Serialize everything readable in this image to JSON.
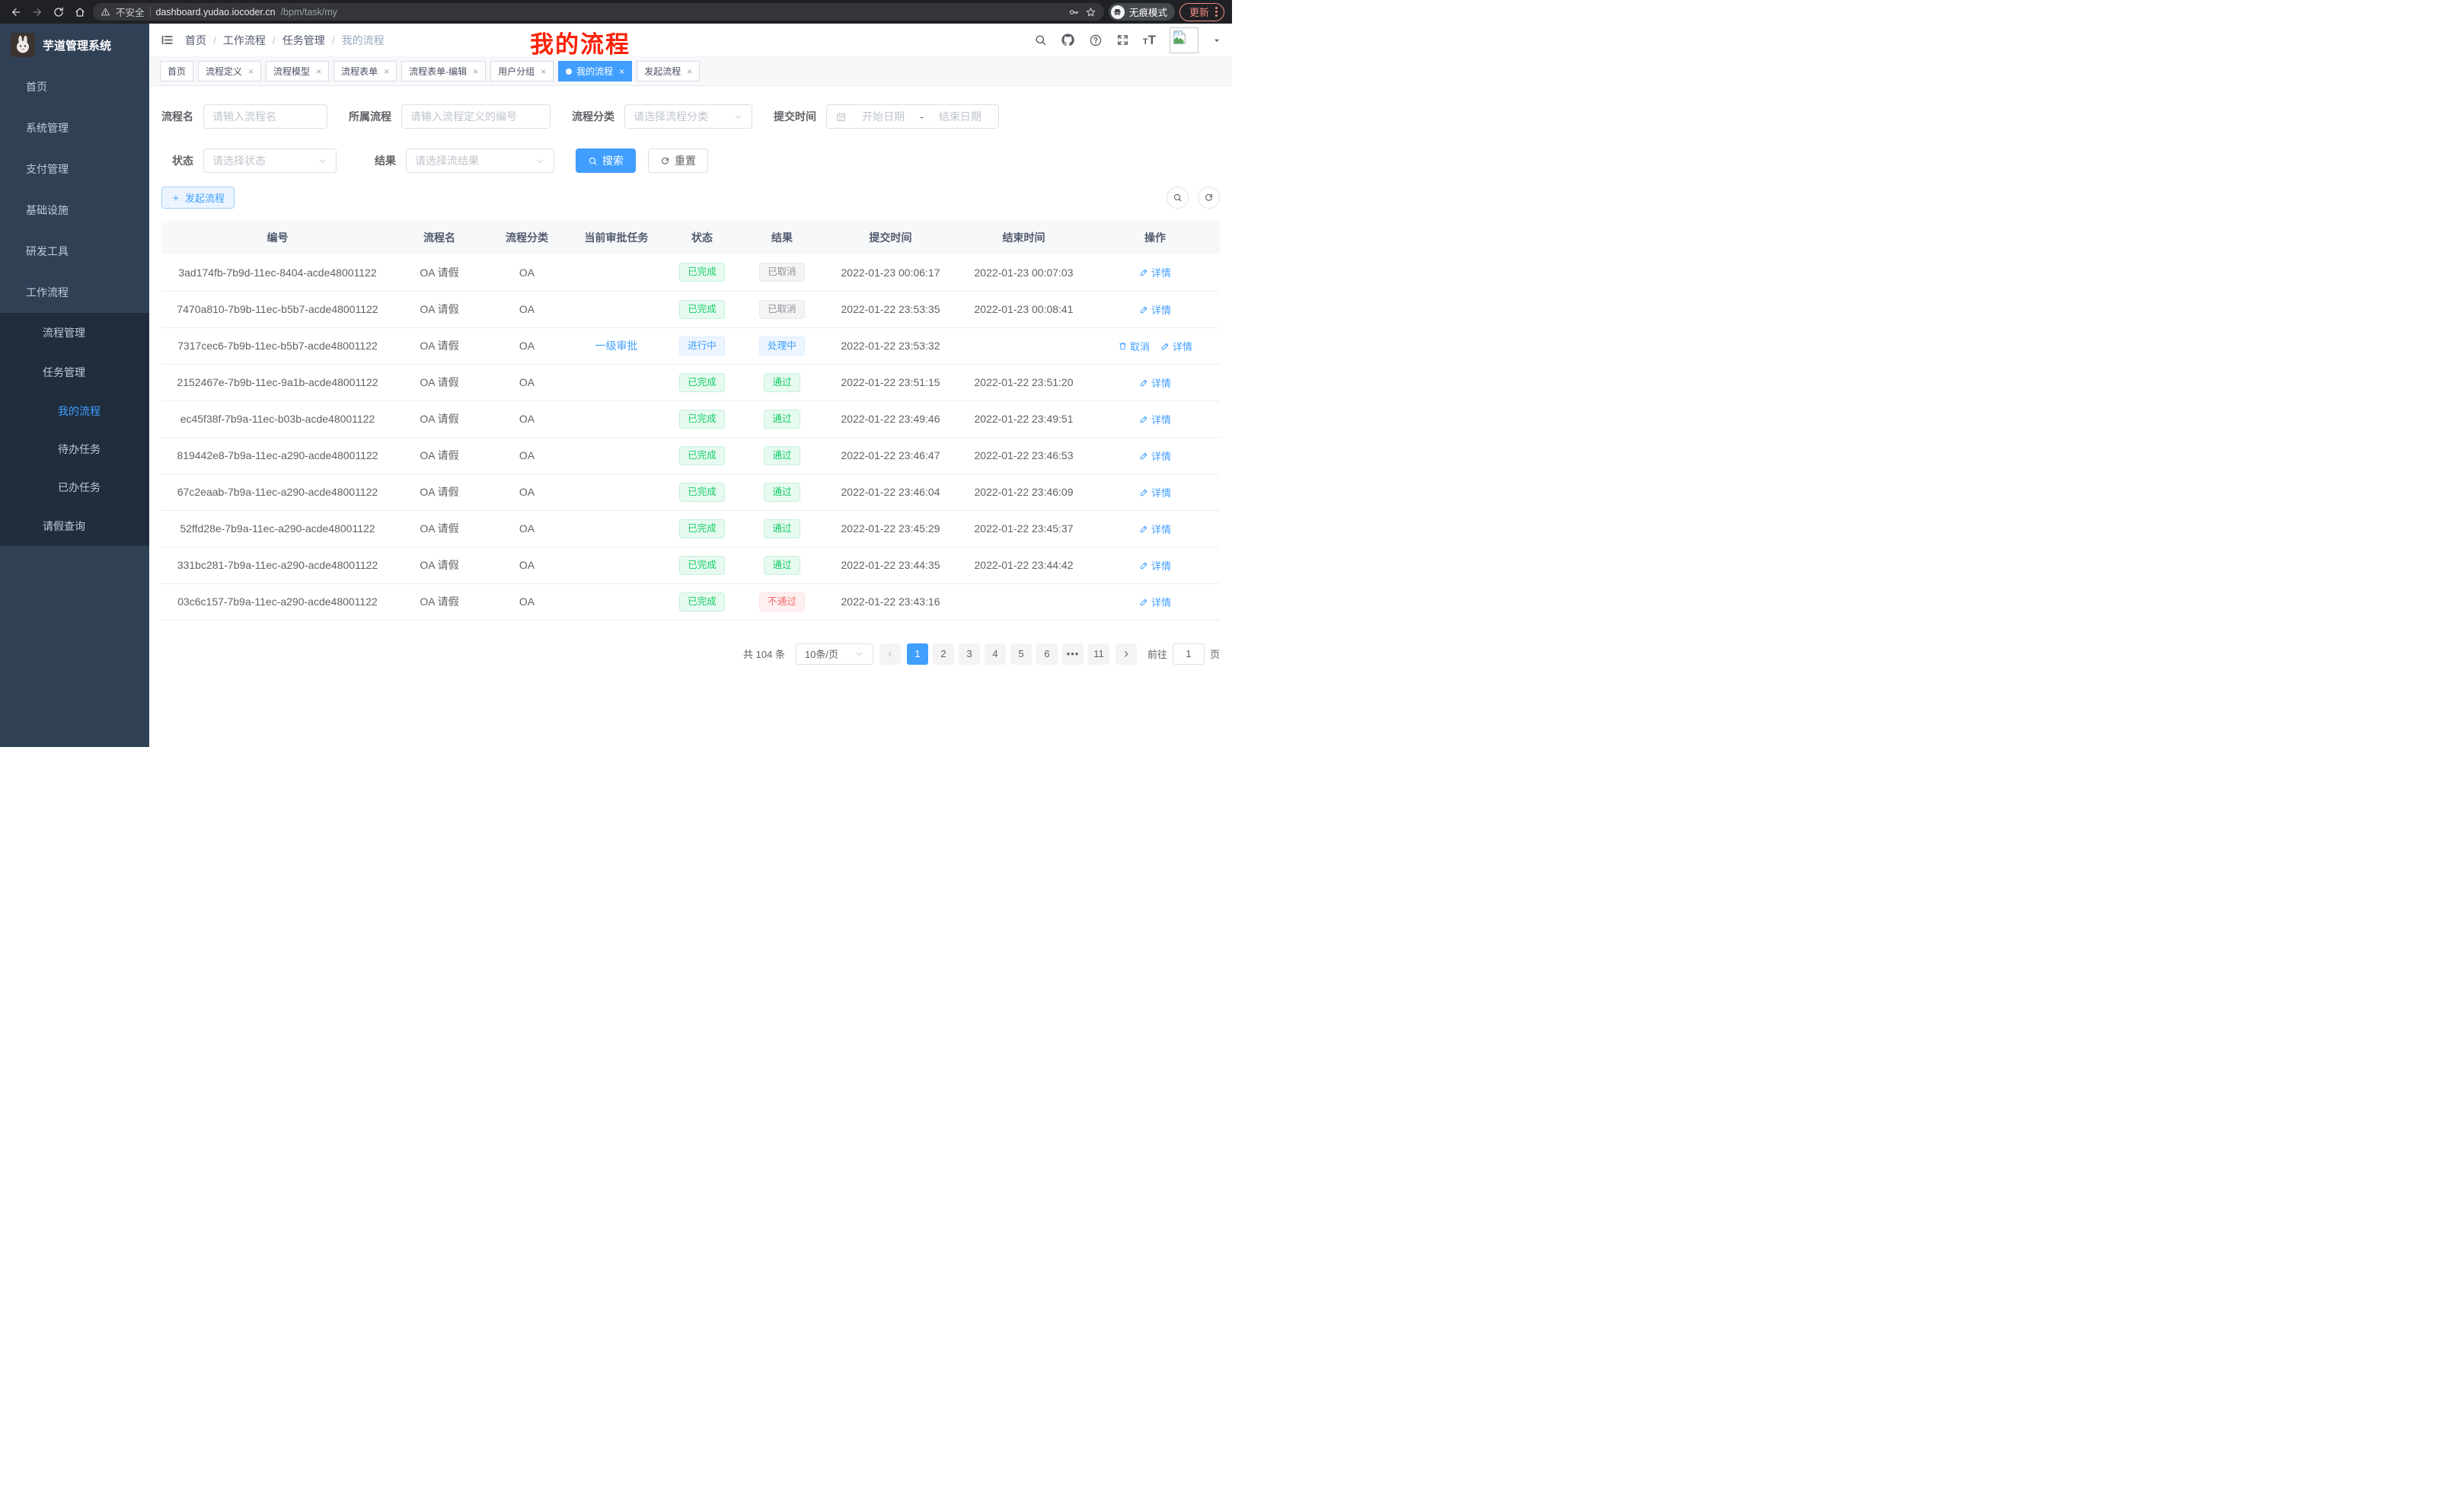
{
  "browser": {
    "security_label": "不安全",
    "url_host": "dashboard.yudao.iocoder.cn",
    "url_path": "/bpm/task/my",
    "incognito_label": "无痕模式",
    "update_button_label": "更新"
  },
  "sidebar": {
    "logo_title": "芋道管理系统",
    "items": [
      {
        "label": "首页",
        "icon": "dashboard",
        "level": 0,
        "chevron": "",
        "in_sub": false,
        "active": false
      },
      {
        "label": "系统管理",
        "icon": "gear",
        "level": 0,
        "chevron": "down",
        "in_sub": false,
        "active": false
      },
      {
        "label": "支付管理",
        "icon": "yen",
        "level": 0,
        "chevron": "down",
        "in_sub": false,
        "active": false
      },
      {
        "label": "基础设施",
        "icon": "monitor",
        "level": 0,
        "chevron": "down",
        "in_sub": false,
        "active": false
      },
      {
        "label": "研发工具",
        "icon": "toolbox",
        "level": 0,
        "chevron": "down",
        "in_sub": false,
        "active": false
      },
      {
        "label": "工作流程",
        "icon": "briefcase",
        "level": 0,
        "chevron": "up",
        "in_sub": false,
        "active": false
      },
      {
        "label": "流程管理",
        "icon": "list",
        "level": 1,
        "chevron": "down",
        "in_sub": true,
        "active": false
      },
      {
        "label": "任务管理",
        "icon": "flow",
        "level": 1,
        "chevron": "up",
        "in_sub": true,
        "active": false
      },
      {
        "label": "我的流程",
        "icon": "robot",
        "level": 2,
        "chevron": "",
        "in_sub": true,
        "active": true
      },
      {
        "label": "待办任务",
        "icon": "eye",
        "level": 2,
        "chevron": "",
        "in_sub": true,
        "active": false
      },
      {
        "label": "已办任务",
        "icon": "eye-closed",
        "level": 2,
        "chevron": "",
        "in_sub": true,
        "active": false
      },
      {
        "label": "请假查询",
        "icon": "user",
        "level": 1,
        "chevron": "",
        "in_sub": true,
        "active": false
      }
    ]
  },
  "header": {
    "breadcrumb": [
      "首页",
      "工作流程",
      "任务管理",
      "我的流程"
    ],
    "annotation": "我的流程"
  },
  "tabs": [
    {
      "label": "首页",
      "closable": false,
      "active": false
    },
    {
      "label": "流程定义",
      "closable": true,
      "active": false
    },
    {
      "label": "流程模型",
      "closable": true,
      "active": false
    },
    {
      "label": "流程表单",
      "closable": true,
      "active": false
    },
    {
      "label": "流程表单-编辑",
      "closable": true,
      "active": false
    },
    {
      "label": "用户分组",
      "closable": true,
      "active": false
    },
    {
      "label": "我的流程",
      "closable": true,
      "active": true
    },
    {
      "label": "发起流程",
      "closable": true,
      "active": false
    }
  ],
  "filters": {
    "process_name_label": "流程名",
    "process_name_placeholder": "请输入流程名",
    "parent_process_label": "所属流程",
    "parent_process_placeholder": "请输入流程定义的编号",
    "category_label": "流程分类",
    "category_placeholder": "请选择流程分类",
    "submit_time_label": "提交时间",
    "start_date_placeholder": "开始日期",
    "date_separator": "-",
    "end_date_placeholder": "结束日期",
    "status_label": "状态",
    "status_placeholder": "请选择状态",
    "result_label": "结果",
    "result_placeholder": "请选择流结果",
    "search_button_label": "搜索",
    "reset_button_label": "重置"
  },
  "toolbar": {
    "create_button_label": "发起流程"
  },
  "table": {
    "columns": [
      "编号",
      "流程名",
      "流程分类",
      "当前审批任务",
      "状态",
      "结果",
      "提交时间",
      "结束时间",
      "操作"
    ],
    "rows": [
      {
        "id": "3ad174fb-7b9d-11ec-8404-acde48001122",
        "name": "OA 请假",
        "category": "OA",
        "current_task": "",
        "status": {
          "text": "已完成",
          "type": "success"
        },
        "result": {
          "text": "已取消",
          "type": "info"
        },
        "submit_time": "2022-01-23 00:06:17",
        "end_time": "2022-01-23 00:07:03",
        "actions": [
          {
            "label": "详情",
            "icon": "edit"
          }
        ]
      },
      {
        "id": "7470a810-7b9b-11ec-b5b7-acde48001122",
        "name": "OA 请假",
        "category": "OA",
        "current_task": "",
        "status": {
          "text": "已完成",
          "type": "success"
        },
        "result": {
          "text": "已取消",
          "type": "info"
        },
        "submit_time": "2022-01-22 23:53:35",
        "end_time": "2022-01-23 00:08:41",
        "actions": [
          {
            "label": "详情",
            "icon": "edit"
          }
        ]
      },
      {
        "id": "7317cec6-7b9b-11ec-b5b7-acde48001122",
        "name": "OA 请假",
        "category": "OA",
        "current_task": "一级审批",
        "status": {
          "text": "进行中",
          "type": "primary"
        },
        "result": {
          "text": "处理中",
          "type": "primary"
        },
        "submit_time": "2022-01-22 23:53:32",
        "end_time": "",
        "actions": [
          {
            "label": "取消",
            "icon": "delete"
          },
          {
            "label": "详情",
            "icon": "edit"
          }
        ]
      },
      {
        "id": "2152467e-7b9b-11ec-9a1b-acde48001122",
        "name": "OA 请假",
        "category": "OA",
        "current_task": "",
        "status": {
          "text": "已完成",
          "type": "success"
        },
        "result": {
          "text": "通过",
          "type": "success"
        },
        "submit_time": "2022-01-22 23:51:15",
        "end_time": "2022-01-22 23:51:20",
        "actions": [
          {
            "label": "详情",
            "icon": "edit"
          }
        ]
      },
      {
        "id": "ec45f38f-7b9a-11ec-b03b-acde48001122",
        "name": "OA 请假",
        "category": "OA",
        "current_task": "",
        "status": {
          "text": "已完成",
          "type": "success"
        },
        "result": {
          "text": "通过",
          "type": "success"
        },
        "submit_time": "2022-01-22 23:49:46",
        "end_time": "2022-01-22 23:49:51",
        "actions": [
          {
            "label": "详情",
            "icon": "edit"
          }
        ]
      },
      {
        "id": "819442e8-7b9a-11ec-a290-acde48001122",
        "name": "OA 请假",
        "category": "OA",
        "current_task": "",
        "status": {
          "text": "已完成",
          "type": "success"
        },
        "result": {
          "text": "通过",
          "type": "success"
        },
        "submit_time": "2022-01-22 23:46:47",
        "end_time": "2022-01-22 23:46:53",
        "actions": [
          {
            "label": "详情",
            "icon": "edit"
          }
        ]
      },
      {
        "id": "67c2eaab-7b9a-11ec-a290-acde48001122",
        "name": "OA 请假",
        "category": "OA",
        "current_task": "",
        "status": {
          "text": "已完成",
          "type": "success"
        },
        "result": {
          "text": "通过",
          "type": "success"
        },
        "submit_time": "2022-01-22 23:46:04",
        "end_time": "2022-01-22 23:46:09",
        "actions": [
          {
            "label": "详情",
            "icon": "edit"
          }
        ]
      },
      {
        "id": "52ffd28e-7b9a-11ec-a290-acde48001122",
        "name": "OA 请假",
        "category": "OA",
        "current_task": "",
        "status": {
          "text": "已完成",
          "type": "success"
        },
        "result": {
          "text": "通过",
          "type": "success"
        },
        "submit_time": "2022-01-22 23:45:29",
        "end_time": "2022-01-22 23:45:37",
        "actions": [
          {
            "label": "详情",
            "icon": "edit"
          }
        ]
      },
      {
        "id": "331bc281-7b9a-11ec-a290-acde48001122",
        "name": "OA 请假",
        "category": "OA",
        "current_task": "",
        "status": {
          "text": "已完成",
          "type": "success"
        },
        "result": {
          "text": "通过",
          "type": "success"
        },
        "submit_time": "2022-01-22 23:44:35",
        "end_time": "2022-01-22 23:44:42",
        "actions": [
          {
            "label": "详情",
            "icon": "edit"
          }
        ]
      },
      {
        "id": "03c6c157-7b9a-11ec-a290-acde48001122",
        "name": "OA 请假",
        "category": "OA",
        "current_task": "",
        "status": {
          "text": "已完成",
          "type": "success"
        },
        "result": {
          "text": "不通过",
          "type": "danger"
        },
        "submit_time": "2022-01-22 23:43:16",
        "end_time": "",
        "actions": [
          {
            "label": "详情",
            "icon": "edit"
          }
        ]
      }
    ]
  },
  "pagination": {
    "total_text": "共 104 条",
    "page_size_value": "10条/页",
    "pages": [
      "1",
      "2",
      "3",
      "4",
      "5",
      "6",
      "ellipsis",
      "11"
    ],
    "active_page": "1",
    "goto_label": "前往",
    "goto_value": "1",
    "goto_suffix": "页"
  },
  "colors": {
    "accent": "#409eff",
    "annotation_red": "#fb2209",
    "sidebar_bg": "#304156",
    "sidebar_sub_bg": "#1f2d3d",
    "sidebar_text": "#bfcbd9",
    "status_success": {
      "text": "#13ce66",
      "bg": "#e7faf0",
      "border": "#c4f1da"
    },
    "status_info": {
      "text": "#909399",
      "bg": "#f4f4f5",
      "border": "#e9e9eb"
    },
    "status_primary": {
      "text": "#409eff",
      "bg": "#ecf5ff",
      "border": "#d9ecff"
    },
    "status_danger": {
      "text": "#f56c6c",
      "bg": "#fef0f0",
      "border": "#fde2e2"
    }
  }
}
